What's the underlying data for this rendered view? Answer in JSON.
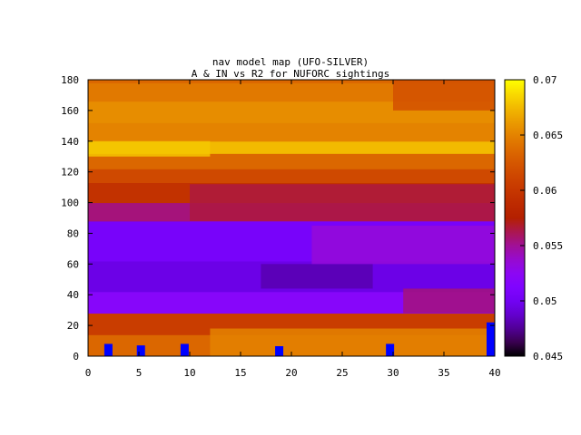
{
  "chart_data": {
    "type": "heatmap",
    "title": "nav model map (UFO-SILVER)",
    "subtitle": "A & IN vs R2 for NUFORC sightings",
    "xlabel": "",
    "ylabel": "",
    "xlim": [
      0,
      40
    ],
    "ylim": [
      0,
      180
    ],
    "x_ticks": [
      "0",
      "5",
      "10",
      "15",
      "20",
      "25",
      "30",
      "35",
      "40"
    ],
    "y_ticks": [
      "0",
      "20",
      "40",
      "60",
      "80",
      "100",
      "120",
      "140",
      "160",
      "180"
    ],
    "colorbar": {
      "range": [
        0.045,
        0.07
      ],
      "ticks": [
        "0.045",
        "0.05",
        "0.055",
        "0.06",
        "0.065",
        "0.07"
      ]
    },
    "bands": [
      {
        "y0": 0,
        "y1": 14,
        "value": 0.0635
      },
      {
        "y0": 14,
        "y1": 28,
        "value": 0.0605
      },
      {
        "y0": 28,
        "y1": 42,
        "value": 0.052
      },
      {
        "y0": 42,
        "y1": 62,
        "value": 0.0495
      },
      {
        "y0": 62,
        "y1": 88,
        "value": 0.0505
      },
      {
        "y0": 88,
        "y1": 100,
        "value": 0.0555
      },
      {
        "y0": 100,
        "y1": 113,
        "value": 0.0595
      },
      {
        "y0": 113,
        "y1": 122,
        "value": 0.0615
      },
      {
        "y0": 122,
        "y1": 132,
        "value": 0.0635
      },
      {
        "y0": 132,
        "y1": 140,
        "value": 0.0675
      },
      {
        "y0": 140,
        "y1": 152,
        "value": 0.065
      },
      {
        "y0": 152,
        "y1": 166,
        "value": 0.0655
      },
      {
        "y0": 166,
        "y1": 178,
        "value": 0.0645
      },
      {
        "y0": 178,
        "y1": 180,
        "value": 0.0635
      }
    ],
    "patches": [
      {
        "x0": 17,
        "x1": 28,
        "y0": 44,
        "y1": 60,
        "value": 0.048
      },
      {
        "x0": 22,
        "x1": 40,
        "y0": 60,
        "y1": 85,
        "value": 0.0535
      },
      {
        "x0": 0,
        "x1": 12,
        "y0": 130,
        "y1": 140,
        "value": 0.068
      },
      {
        "x0": 10,
        "x1": 40,
        "y0": 88,
        "y1": 112,
        "value": 0.0565
      },
      {
        "x0": 12,
        "x1": 40,
        "y0": 0,
        "y1": 18,
        "value": 0.065
      },
      {
        "x0": 31,
        "x1": 40,
        "y0": 28,
        "y1": 44,
        "value": 0.0555
      },
      {
        "x0": 30,
        "x1": 40,
        "y0": 160,
        "y1": 180,
        "value": 0.062
      }
    ],
    "bar_series": {
      "color": "#0000ff",
      "x": [
        2,
        5.2,
        9.5,
        18.8,
        29.7,
        39.6
      ],
      "y": [
        8,
        7,
        8,
        6.5,
        8,
        22
      ]
    }
  }
}
